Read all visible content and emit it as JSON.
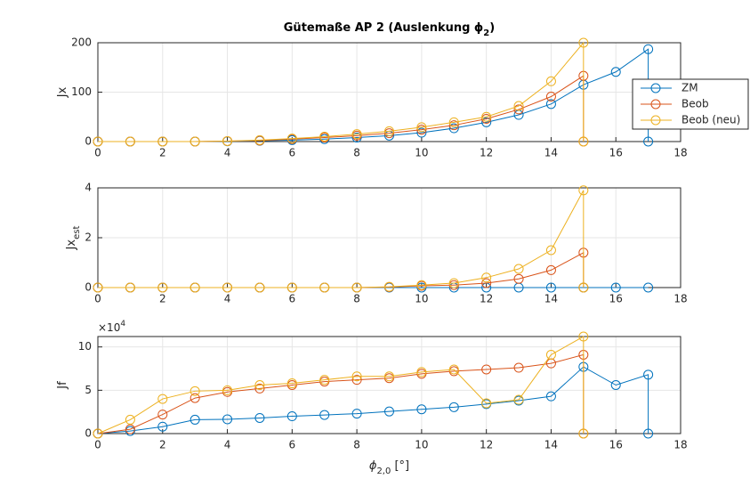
{
  "chart_data": [
    {
      "type": "line",
      "title": "Gütemaße AP 2 (Auslenkung ϕ",
      "title_sub": "2",
      "title_end": ")",
      "ylabel": "Jx",
      "xlim": [
        0,
        18
      ],
      "xticks": [
        0,
        2,
        4,
        6,
        8,
        10,
        12,
        14,
        16,
        18
      ],
      "ylim": [
        0,
        200
      ],
      "yticks": [
        0,
        100,
        200
      ],
      "grid": true,
      "legend": "east",
      "series": [
        {
          "name": "ZM",
          "color": "#0072BD",
          "x": [
            0,
            1,
            2,
            3,
            4,
            5,
            6,
            7,
            8,
            9,
            10,
            11,
            12,
            13,
            14,
            15,
            16,
            17,
            17
          ],
          "values": [
            0,
            0,
            0,
            0,
            0.5,
            1.5,
            3,
            5,
            8,
            12,
            18,
            27,
            39,
            54,
            76,
            115,
            141,
            187,
            0
          ]
        },
        {
          "name": "Beob",
          "color": "#D95319",
          "x": [
            0,
            1,
            2,
            3,
            4,
            5,
            6,
            7,
            8,
            9,
            10,
            11,
            12,
            13,
            14,
            15,
            15
          ],
          "values": [
            0,
            0,
            0,
            0,
            1,
            2,
            5,
            8,
            12,
            17,
            24,
            33,
            46,
            65,
            91,
            133,
            0
          ]
        },
        {
          "name": "Beob (neu)",
          "color": "#EDB120",
          "x": [
            0,
            1,
            2,
            3,
            4,
            5,
            6,
            7,
            8,
            9,
            10,
            11,
            12,
            13,
            14,
            15,
            15
          ],
          "values": [
            0,
            0,
            0,
            0,
            1,
            3,
            6,
            10,
            15,
            21,
            29,
            39,
            50,
            72,
            122,
            200,
            0
          ]
        }
      ]
    },
    {
      "type": "line",
      "ylabel": "Jx",
      "ylabel_sub": "est",
      "xlim": [
        0,
        18
      ],
      "xticks": [
        0,
        2,
        4,
        6,
        8,
        10,
        12,
        14,
        16,
        18
      ],
      "ylim": [
        0,
        4
      ],
      "yticks": [
        0,
        2,
        4
      ],
      "grid": true,
      "series": [
        {
          "color": "#0072BD",
          "x": [
            0,
            1,
            2,
            3,
            4,
            5,
            6,
            7,
            8,
            9,
            10,
            11,
            12,
            13,
            14,
            15,
            16,
            17
          ],
          "values": [
            0,
            0,
            0,
            0,
            0,
            0,
            0,
            0,
            0,
            0,
            0,
            0,
            0,
            0,
            0,
            0,
            0,
            0
          ]
        },
        {
          "color": "#D95319",
          "x": [
            0,
            1,
            2,
            3,
            4,
            5,
            6,
            7,
            8,
            9,
            10,
            11,
            12,
            13,
            14,
            15,
            15
          ],
          "values": [
            0,
            0,
            0,
            0,
            0,
            0,
            0,
            0,
            0,
            0.02,
            0.07,
            0.1,
            0.18,
            0.35,
            0.7,
            1.4,
            0
          ]
        },
        {
          "color": "#EDB120",
          "x": [
            0,
            1,
            2,
            3,
            4,
            5,
            6,
            7,
            8,
            9,
            10,
            11,
            12,
            13,
            14,
            15,
            15
          ],
          "values": [
            0,
            0,
            0,
            0,
            0,
            0,
            0,
            0,
            0,
            0.03,
            0.1,
            0.18,
            0.4,
            0.75,
            1.5,
            3.9,
            0
          ]
        }
      ]
    },
    {
      "type": "line",
      "ylabel": "Jf",
      "xlabel": "ϕ",
      "xlabel_sub": "2,0",
      "xlabel_end": " [°]",
      "y_multiplier": "×10",
      "y_multiplier_exp": "4",
      "xlim": [
        0,
        18
      ],
      "xticks": [
        0,
        2,
        4,
        6,
        8,
        10,
        12,
        14,
        16,
        18
      ],
      "ylim": [
        0,
        11.2
      ],
      "yticks": [
        0,
        5,
        10
      ],
      "grid": true,
      "series": [
        {
          "color": "#0072BD",
          "x": [
            0,
            1,
            2,
            3,
            4,
            5,
            6,
            7,
            8,
            9,
            10,
            11,
            12,
            13,
            14,
            15,
            16,
            17,
            17
          ],
          "values": [
            0,
            0.3,
            0.8,
            1.6,
            1.65,
            1.8,
            2.0,
            2.15,
            2.3,
            2.55,
            2.8,
            3.05,
            3.4,
            3.8,
            4.3,
            7.7,
            5.6,
            6.8,
            0
          ]
        },
        {
          "color": "#D95319",
          "x": [
            0,
            1,
            2,
            3,
            4,
            5,
            6,
            7,
            8,
            9,
            10,
            11,
            12,
            13,
            14,
            15,
            15
          ],
          "values": [
            0,
            0.5,
            2.2,
            4.1,
            4.8,
            5.2,
            5.6,
            6.0,
            6.2,
            6.4,
            6.9,
            7.2,
            7.4,
            7.6,
            8.1,
            9.1,
            0
          ]
        },
        {
          "color": "#EDB120",
          "x": [
            0,
            1,
            2,
            3,
            4,
            5,
            6,
            7,
            8,
            9,
            10,
            11,
            12,
            13,
            14,
            15,
            15
          ],
          "values": [
            0,
            1.6,
            4.0,
            4.9,
            5.0,
            5.6,
            5.8,
            6.2,
            6.6,
            6.6,
            7.1,
            7.4,
            3.5,
            3.9,
            9.1,
            11.2,
            0
          ]
        }
      ]
    }
  ]
}
